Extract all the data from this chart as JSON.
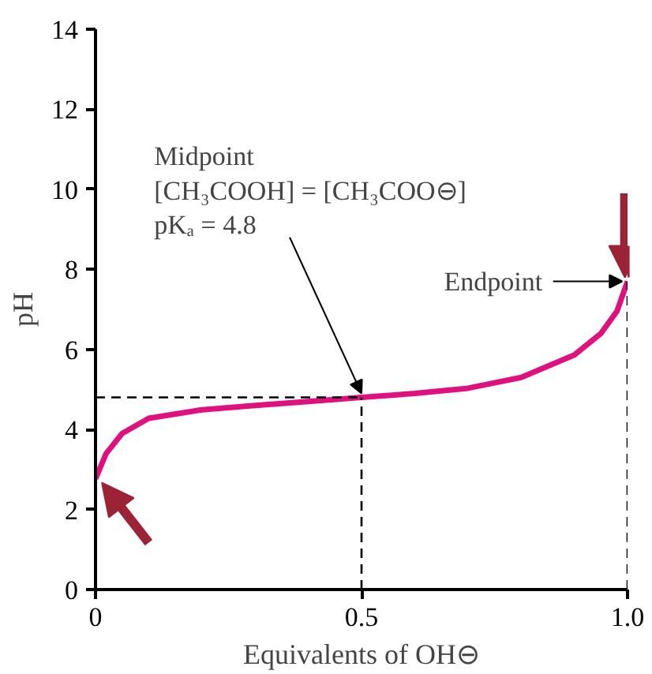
{
  "chart_data": {
    "type": "line",
    "xlabel": "Equivalents of OH⊖",
    "ylabel": "pH",
    "x": [
      0,
      0.02,
      0.05,
      0.1,
      0.2,
      0.3,
      0.4,
      0.5,
      0.6,
      0.7,
      0.8,
      0.9,
      0.95,
      0.98,
      1.0
    ],
    "series": [
      {
        "color": "#e0117f",
        "values": [
          2.77,
          3.4,
          3.9,
          4.28,
          4.49,
          4.6,
          4.7,
          4.8,
          4.9,
          5.03,
          5.3,
          5.86,
          6.4,
          6.95,
          7.7
        ]
      }
    ],
    "xlim": [
      0,
      1
    ],
    "ylim": [
      0,
      14
    ],
    "xticks": [
      0,
      0.5,
      {
        "value": 1,
        "label": "1.0"
      }
    ],
    "yticks": [
      0,
      2,
      4,
      6,
      8,
      10,
      12,
      14
    ],
    "ref_lines": [
      {
        "axis": "y",
        "value": 4.8,
        "color": "#000000",
        "line_style": "dashed"
      },
      {
        "axis": "x",
        "value": 0.5,
        "color": "#000000",
        "line_style": "dashed"
      },
      {
        "axis": "x",
        "value": 1,
        "color": "#000000",
        "line_style": "dashed"
      }
    ],
    "annotations": [
      {
        "text": "Midpoint\n[CH₃COOH] = [CH₃COO⊖]\npKₐ = 4.8",
        "x": 0.5,
        "y": 4.8
      },
      {
        "text": "Endpoint",
        "x": 1,
        "y": 7.7
      }
    ],
    "grid": false,
    "marker": "none",
    "line_style": "solid"
  }
}
